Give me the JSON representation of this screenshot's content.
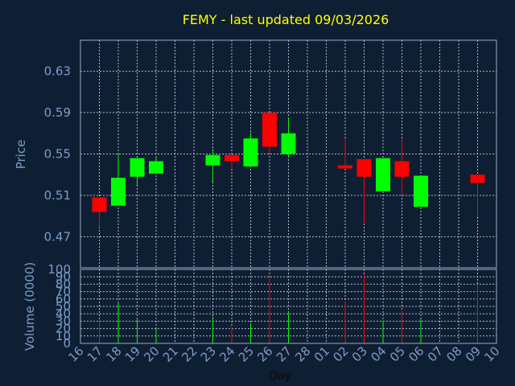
{
  "chart_data": {
    "type": "candlestick",
    "title": "FEMY - last updated 09/03/2026",
    "xlabel": "Day",
    "price_panel": {
      "ylabel": "Price",
      "ylim": [
        0.44,
        0.66
      ],
      "yticks": [
        "0.47",
        "0.51",
        "0.55",
        "0.59",
        "0.63"
      ],
      "ytick_values": [
        0.47,
        0.51,
        0.55,
        0.59,
        0.63
      ],
      "grid": true
    },
    "volume_panel": {
      "ylabel": "Volume (0000)",
      "ylim": [
        0,
        100
      ],
      "yticks": [
        "0",
        "10",
        "20",
        "30",
        "40",
        "50",
        "60",
        "70",
        "80",
        "90",
        "100"
      ],
      "ytick_values": [
        0,
        10,
        20,
        30,
        40,
        50,
        60,
        70,
        80,
        90,
        100
      ],
      "grid": true
    },
    "days": [
      "16",
      "17",
      "18",
      "19",
      "20",
      "21",
      "22",
      "23",
      "24",
      "25",
      "26",
      "27",
      "28",
      "01",
      "02",
      "03",
      "04",
      "05",
      "06",
      "07",
      "08",
      "09",
      "10"
    ],
    "colors": {
      "up": "#00ff00",
      "down": "#ff0000",
      "background": "#0f1f33",
      "axis_text": "#7c9cc8",
      "title": "#ffff00"
    },
    "candles": [
      {
        "day": "17",
        "open": 0.508,
        "close": 0.494,
        "high": 0.508,
        "low": 0.479,
        "volume": 30
      },
      {
        "day": "18",
        "open": 0.5,
        "close": 0.527,
        "high": 0.55,
        "low": 0.5,
        "volume": 56
      },
      {
        "day": "19",
        "open": 0.528,
        "close": 0.546,
        "high": 0.546,
        "low": 0.52,
        "volume": 35
      },
      {
        "day": "20",
        "open": 0.531,
        "close": 0.543,
        "high": 0.548,
        "low": 0.531,
        "volume": 20
      },
      {
        "day": "23",
        "open": 0.539,
        "close": 0.549,
        "high": 0.555,
        "low": 0.523,
        "volume": 36
      },
      {
        "day": "24",
        "open": 0.549,
        "close": 0.543,
        "high": 0.549,
        "low": 0.536,
        "volume": 22
      },
      {
        "day": "25",
        "open": 0.538,
        "close": 0.565,
        "high": 0.571,
        "low": 0.538,
        "volume": 27
      },
      {
        "day": "26",
        "open": 0.59,
        "close": 0.557,
        "high": 0.59,
        "low": 0.551,
        "volume": 90
      },
      {
        "day": "27",
        "open": 0.55,
        "close": 0.57,
        "high": 0.585,
        "low": 0.547,
        "volume": 43
      },
      {
        "day": "02",
        "open": 0.539,
        "close": 0.536,
        "high": 0.565,
        "low": 0.536,
        "volume": 57
      },
      {
        "day": "03",
        "open": 0.545,
        "close": 0.528,
        "high": 0.545,
        "low": 0.483,
        "volume": 92
      },
      {
        "day": "04",
        "open": 0.514,
        "close": 0.546,
        "high": 0.546,
        "low": 0.514,
        "volume": 31
      },
      {
        "day": "05",
        "open": 0.543,
        "close": 0.528,
        "high": 0.565,
        "low": 0.51,
        "volume": 44
      },
      {
        "day": "06",
        "open": 0.499,
        "close": 0.529,
        "high": 0.529,
        "low": 0.499,
        "volume": 34
      },
      {
        "day": "09",
        "open": 0.53,
        "close": 0.522,
        "high": 0.53,
        "low": 0.489,
        "volume": 80
      }
    ]
  }
}
